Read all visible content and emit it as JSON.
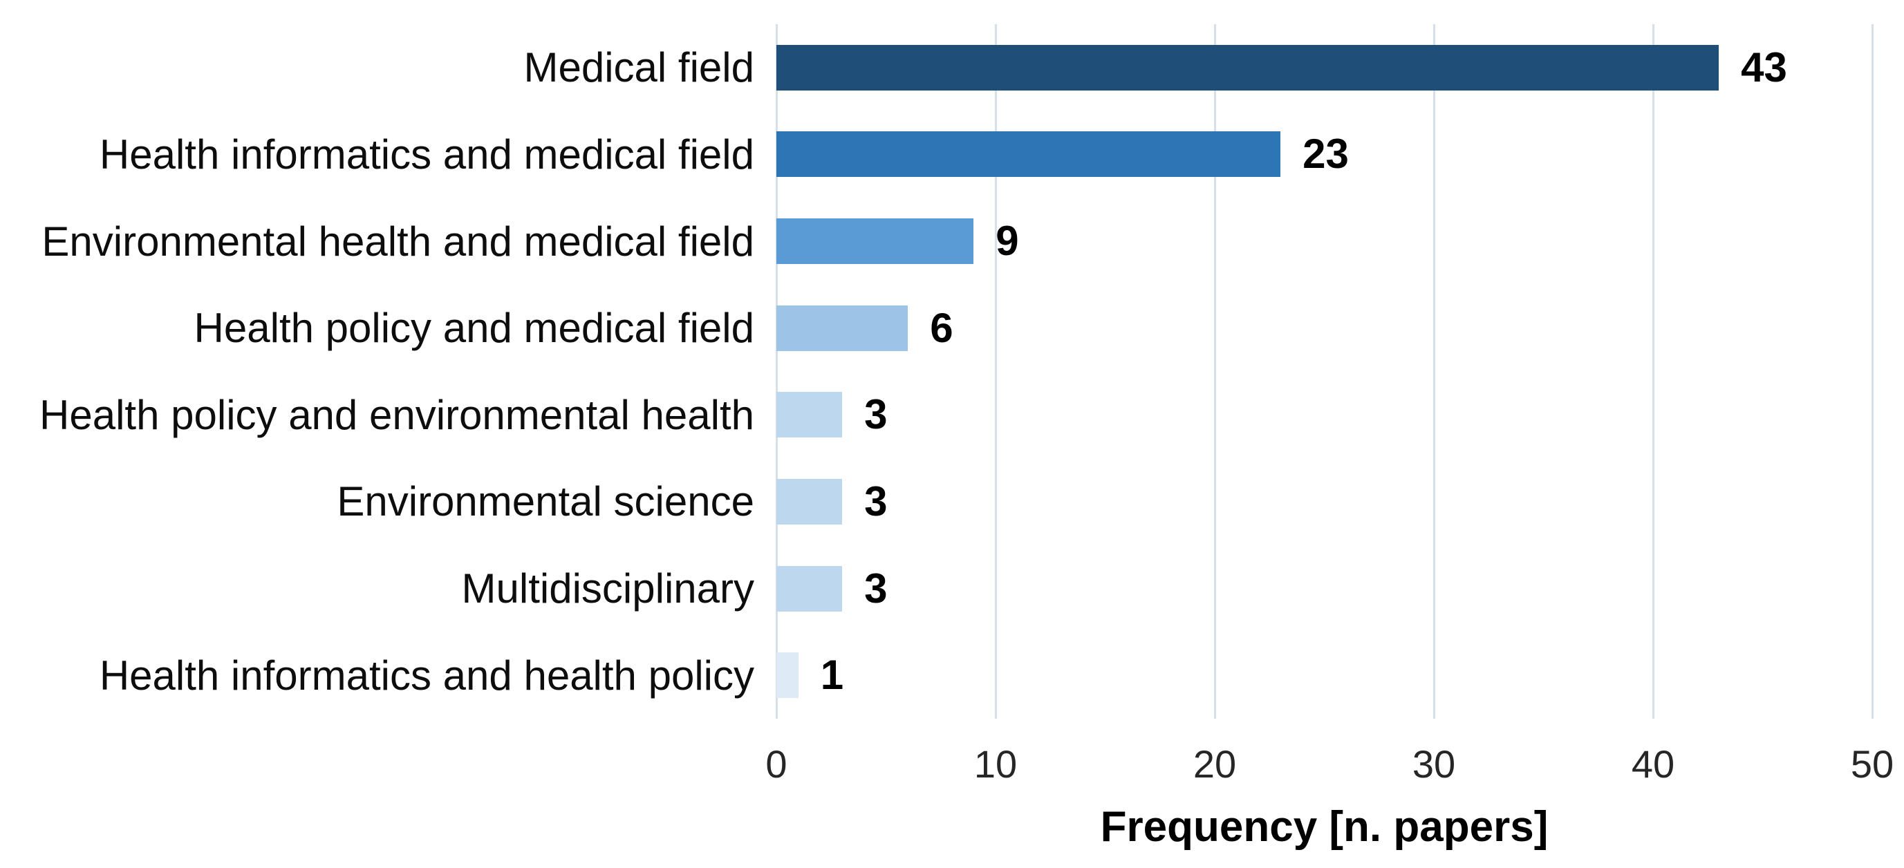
{
  "chart_data": {
    "type": "bar",
    "orientation": "horizontal",
    "title": "",
    "xlabel": "Frequency [n. papers]",
    "ylabel": "",
    "xlim": [
      0,
      50
    ],
    "xticks": [
      0,
      10,
      20,
      30,
      40,
      50
    ],
    "grid": "vertical-gridlines-on",
    "legend": "none",
    "categories": [
      "Medical field",
      "Health informatics and medical field",
      "Environmental health and medical field",
      "Health policy and medical field",
      "Health policy and environmental health",
      "Environmental science",
      "Multidisciplinary",
      "Health informatics and health policy"
    ],
    "values": [
      43,
      23,
      9,
      6,
      3,
      3,
      3,
      1
    ],
    "value_labels": [
      "43",
      "23",
      "9",
      "6",
      "3",
      "3",
      "3",
      "1"
    ],
    "bar_colors": [
      "#1f4e79",
      "#2e75b6",
      "#5b9bd5",
      "#9dc3e6",
      "#bdd7ee",
      "#bdd7ee",
      "#bdd7ee",
      "#deebf7"
    ],
    "gridline_color": "#d7dfe8",
    "category_label_color": "#0d0d0d",
    "value_label_color": "#000000",
    "tick_label_color": "#262626",
    "background_color": "#ffffff"
  }
}
